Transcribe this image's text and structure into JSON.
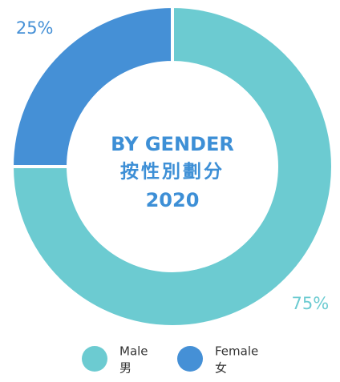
{
  "chart_data": {
    "type": "donut",
    "title_lines": [
      "BY GENDER",
      "按性別劃分",
      "2020"
    ],
    "categories": [
      "Male",
      "Female"
    ],
    "categories_zh": [
      "男",
      "女"
    ],
    "values": [
      75,
      25
    ],
    "value_labels": [
      "75%",
      "25%"
    ],
    "colors": [
      "#6ccbd1",
      "#4590d6"
    ],
    "legend": "bottom"
  }
}
